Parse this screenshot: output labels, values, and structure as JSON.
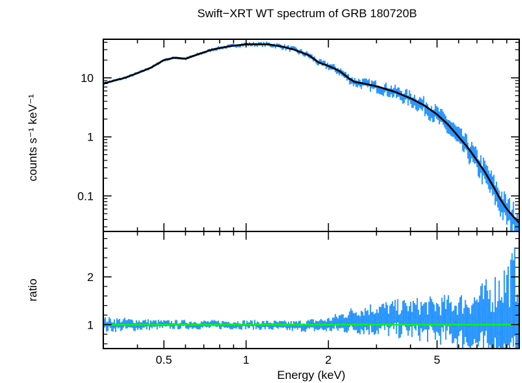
{
  "chart_data": [
    {
      "type": "line",
      "title": "Swift−XRT WT spectrum of GRB 180720B",
      "ylabel": "counts s⁻¹ keV⁻¹",
      "xscale": "log",
      "yscale": "log",
      "xlim": [
        0.3,
        10
      ],
      "ylim": [
        0.025,
        45
      ],
      "yticks": [
        0.1,
        1,
        10
      ],
      "ytick_labels": [
        "0.1",
        "1",
        "10"
      ],
      "grid": false,
      "series": [
        {
          "kind": "data",
          "color": "#1e90ff",
          "x": [
            0.3,
            0.33,
            0.36,
            0.4,
            0.45,
            0.5,
            0.55,
            0.6,
            0.65,
            0.7,
            0.75,
            0.8,
            0.9,
            1.0,
            1.1,
            1.2,
            1.35,
            1.5,
            1.7,
            1.85,
            2.0,
            2.2,
            2.4,
            2.5,
            2.7,
            3.0,
            3.5,
            4.0,
            4.5,
            5.0,
            5.5,
            6.0,
            6.5,
            7.0,
            7.5,
            8.0,
            8.5,
            9.0,
            9.5,
            10.0
          ],
          "y": [
            8,
            9,
            10,
            12,
            15,
            20,
            22,
            21,
            24,
            27,
            30,
            32,
            35,
            37,
            37,
            37,
            34,
            30,
            24,
            18,
            16,
            13,
            9.5,
            8.5,
            8,
            7.2,
            5.8,
            4.5,
            3.4,
            2.4,
            1.6,
            1.0,
            0.65,
            0.4,
            0.25,
            0.15,
            0.09,
            0.06,
            0.045,
            0.035
          ]
        },
        {
          "kind": "model",
          "color": "#000000",
          "x": [
            0.3,
            0.33,
            0.36,
            0.4,
            0.45,
            0.5,
            0.55,
            0.6,
            0.65,
            0.7,
            0.75,
            0.8,
            0.9,
            1.0,
            1.1,
            1.2,
            1.35,
            1.5,
            1.7,
            1.85,
            2.0,
            2.2,
            2.4,
            2.5,
            2.7,
            3.0,
            3.5,
            4.0,
            4.5,
            5.0,
            5.5,
            6.0,
            6.5,
            7.0,
            7.5,
            8.0,
            8.5,
            9.0,
            9.5,
            10.0
          ],
          "y": [
            8,
            9,
            10,
            12,
            15,
            20,
            22,
            21,
            24,
            27,
            30,
            32,
            35,
            37,
            37,
            37,
            34,
            30,
            24,
            18,
            16,
            13,
            9.5,
            8.5,
            8,
            7.2,
            5.8,
            4.5,
            3.4,
            2.4,
            1.6,
            1.0,
            0.65,
            0.4,
            0.25,
            0.15,
            0.09,
            0.06,
            0.045,
            0.035
          ]
        }
      ]
    },
    {
      "type": "scatter",
      "xlabel": "Energy (keV)",
      "ylabel": "ratio",
      "xscale": "log",
      "xlim": [
        0.3,
        10
      ],
      "ylim": [
        0.5,
        2.95
      ],
      "xticks": [
        0.5,
        1,
        2,
        5
      ],
      "xtick_labels": [
        "0.5",
        "1",
        "2",
        "5"
      ],
      "yticks": [
        1,
        2
      ],
      "ytick_labels": [
        "1",
        "2"
      ],
      "grid": false,
      "reference_line": {
        "y": 1,
        "color": "#00ff00"
      },
      "series": [
        {
          "kind": "data",
          "color": "#1e90ff",
          "x": [
            0.3,
            0.4,
            0.5,
            0.7,
            1.0,
            1.5,
            2.0,
            2.5,
            3.0,
            4.0,
            5.0,
            6.0,
            7.0,
            8.0,
            9.0,
            10.0
          ],
          "y": [
            1.0,
            1.0,
            1.0,
            1.0,
            1.0,
            0.97,
            1.0,
            1.1,
            1.12,
            1.12,
            1.1,
            1.08,
            1.05,
            1.05,
            1.1,
            1.1
          ],
          "err": [
            0.1,
            0.08,
            0.06,
            0.06,
            0.06,
            0.07,
            0.1,
            0.18,
            0.22,
            0.26,
            0.3,
            0.35,
            0.45,
            0.6,
            0.8,
            1.0
          ]
        }
      ]
    }
  ]
}
